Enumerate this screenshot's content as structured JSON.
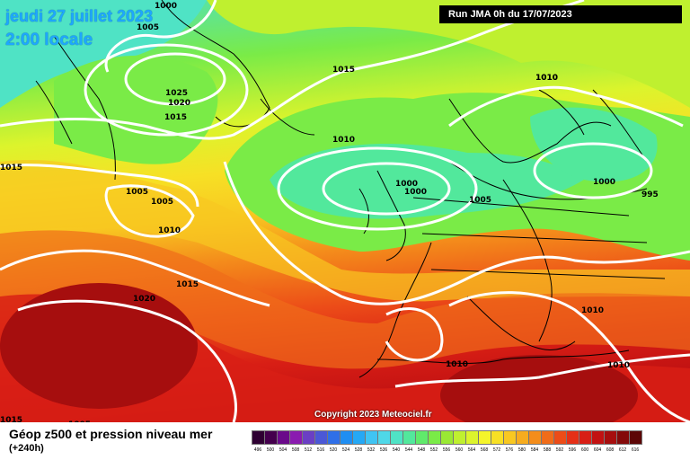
{
  "header": {
    "date": "jeudi 27 juillet 2023",
    "time": "2:00 locale",
    "run": "Run JMA 0h du 17/07/2023"
  },
  "footer": {
    "copyright": "Copyright 2023 Meteociel.fr",
    "title": "Géop z500 et pression niveau mer",
    "lead_time": "(+240h)"
  },
  "isobar_labels": [
    "1000",
    "1005",
    "1015",
    "1025",
    "1020",
    "1015",
    "1015",
    "1010",
    "1005",
    "1005",
    "1010",
    "1020",
    "1015",
    "1015",
    "1010",
    "1000",
    "1000",
    "1005",
    "1010",
    "1000",
    "995",
    "1010",
    "1010",
    "1010",
    "1005"
  ],
  "legend_values": [
    "496",
    "500",
    "504",
    "508",
    "512",
    "516",
    "520",
    "524",
    "528",
    "532",
    "536",
    "540",
    "544",
    "548",
    "552",
    "556",
    "560",
    "564",
    "568",
    "572",
    "576",
    "580",
    "584",
    "588",
    "592",
    "596",
    "600",
    "604",
    "608",
    "612",
    "616"
  ],
  "legend_colors": [
    "#2e0032",
    "#44004d",
    "#6a0a8a",
    "#8a1bb0",
    "#6b3fc4",
    "#4b58d6",
    "#2f6fe8",
    "#1f8ef2",
    "#25a8f5",
    "#3fc4f3",
    "#4fd8e8",
    "#4fe3c5",
    "#52e89c",
    "#60ea6b",
    "#7aeb47",
    "#9ae934",
    "#bff02f",
    "#dcf42c",
    "#f5f52a",
    "#f7e025",
    "#f8c821",
    "#f7ac1e",
    "#f48d1b",
    "#f06c19",
    "#ec4c18",
    "#e53017",
    "#d81e15",
    "#c21212",
    "#a60e0e",
    "#840a0a",
    "#5c0505"
  ]
}
